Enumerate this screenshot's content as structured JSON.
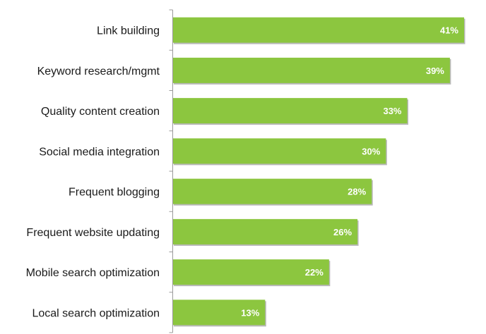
{
  "colors": {
    "bar": "#8cc63f",
    "bar_shadow": "#b8b8b8",
    "axis": "#9a9a9a",
    "label_text": "#1a1a1a",
    "value_text": "#ffffff"
  },
  "chart_data": {
    "type": "bar",
    "orientation": "horizontal",
    "title": "",
    "xlabel": "",
    "ylabel": "",
    "xlim": [
      0,
      41
    ],
    "grid": false,
    "legend": "none",
    "categories": [
      "Link building",
      "Keyword research/mgmt",
      "Quality content creation",
      "Social media integration",
      "Frequent blogging",
      "Frequent website updating",
      "Mobile search optimization",
      "Local search optimization"
    ],
    "values": [
      41,
      39,
      33,
      30,
      28,
      26,
      22,
      13
    ],
    "value_labels": [
      "41%",
      "39%",
      "33%",
      "30%",
      "28%",
      "26%",
      "22%",
      "13%"
    ]
  }
}
